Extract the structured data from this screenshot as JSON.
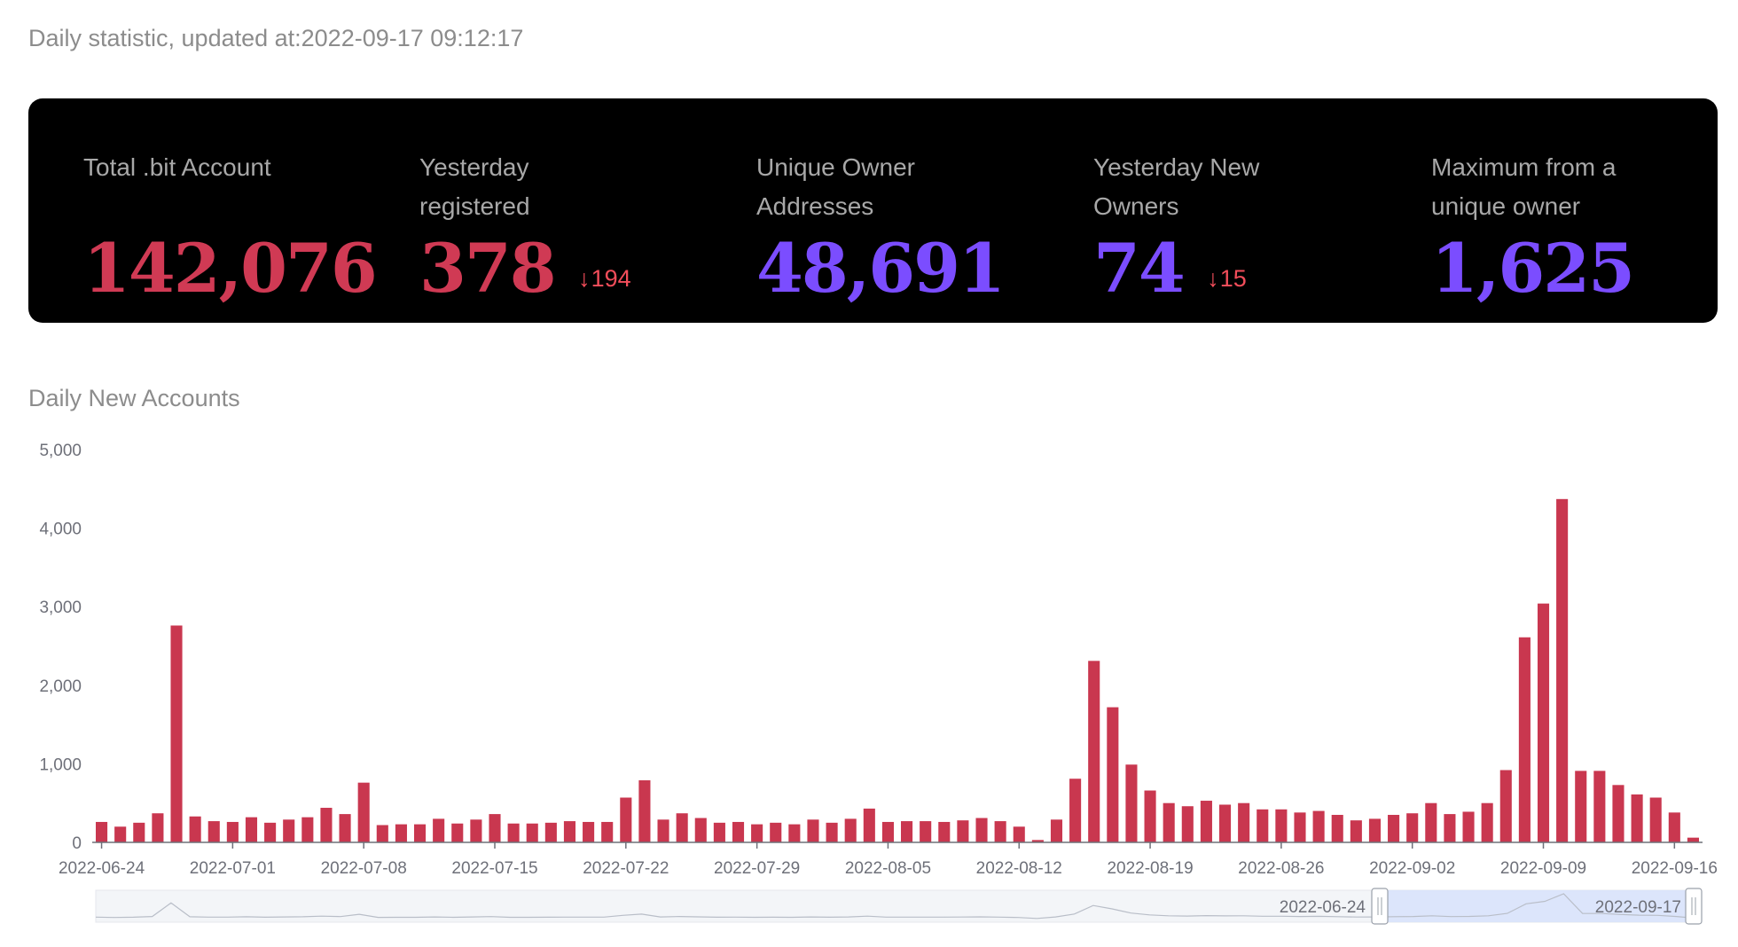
{
  "header": {
    "updated_text": "Daily statistic, updated at:2022-09-17 09:12:17"
  },
  "stats": [
    {
      "label": "Total .bit Account",
      "value": "142,076",
      "color": "#d03a54",
      "delta": null
    },
    {
      "label": "Yesterday registered",
      "value": "378",
      "color": "#d03a54",
      "delta": "194"
    },
    {
      "label": "Unique Owner Addresses",
      "value": "48,691",
      "color": "#7b4dff",
      "delta": null
    },
    {
      "label": "Yesterday New Owners",
      "value": "74",
      "color": "#7b4dff",
      "delta": "15"
    },
    {
      "label": "Maximum from a unique owner",
      "value": "1,625",
      "color": "#7b4dff",
      "delta": null
    }
  ],
  "delta_arrow": "↓",
  "chart_title": "Daily New Accounts",
  "chart_data": {
    "type": "bar",
    "title": "Daily New Accounts",
    "bar_color": "#c9374f",
    "ylim": [
      0,
      5000
    ],
    "yticks": [
      "0",
      "1,000",
      "2,000",
      "3,000",
      "4,000",
      "5,000"
    ],
    "ytick_values": [
      0,
      1000,
      2000,
      3000,
      4000,
      5000
    ],
    "xtick_labels": [
      "2022-06-24",
      "2022-07-01",
      "2022-07-08",
      "2022-07-15",
      "2022-07-22",
      "2022-07-29",
      "2022-08-05",
      "2022-08-12",
      "2022-08-19",
      "2022-08-26",
      "2022-09-02",
      "2022-09-09",
      "2022-09-16"
    ],
    "x_start": "2022-06-24",
    "x_end": "2022-09-17",
    "values": [
      260,
      200,
      250,
      370,
      2760,
      330,
      270,
      260,
      320,
      250,
      290,
      320,
      440,
      360,
      760,
      220,
      230,
      230,
      300,
      240,
      290,
      360,
      240,
      240,
      250,
      270,
      260,
      260,
      570,
      790,
      290,
      370,
      310,
      250,
      260,
      230,
      250,
      230,
      290,
      250,
      300,
      430,
      260,
      270,
      270,
      260,
      280,
      310,
      270,
      200,
      30,
      290,
      810,
      2310,
      1720,
      990,
      660,
      500,
      460,
      530,
      480,
      500,
      420,
      420,
      380,
      400,
      350,
      280,
      300,
      350,
      370,
      500,
      360,
      390,
      500,
      920,
      2610,
      3040,
      4370,
      910,
      910,
      730,
      610,
      570,
      380,
      60
    ],
    "zoom_start_label": "2022-06-24",
    "zoom_end_label": "2022-09-17"
  }
}
